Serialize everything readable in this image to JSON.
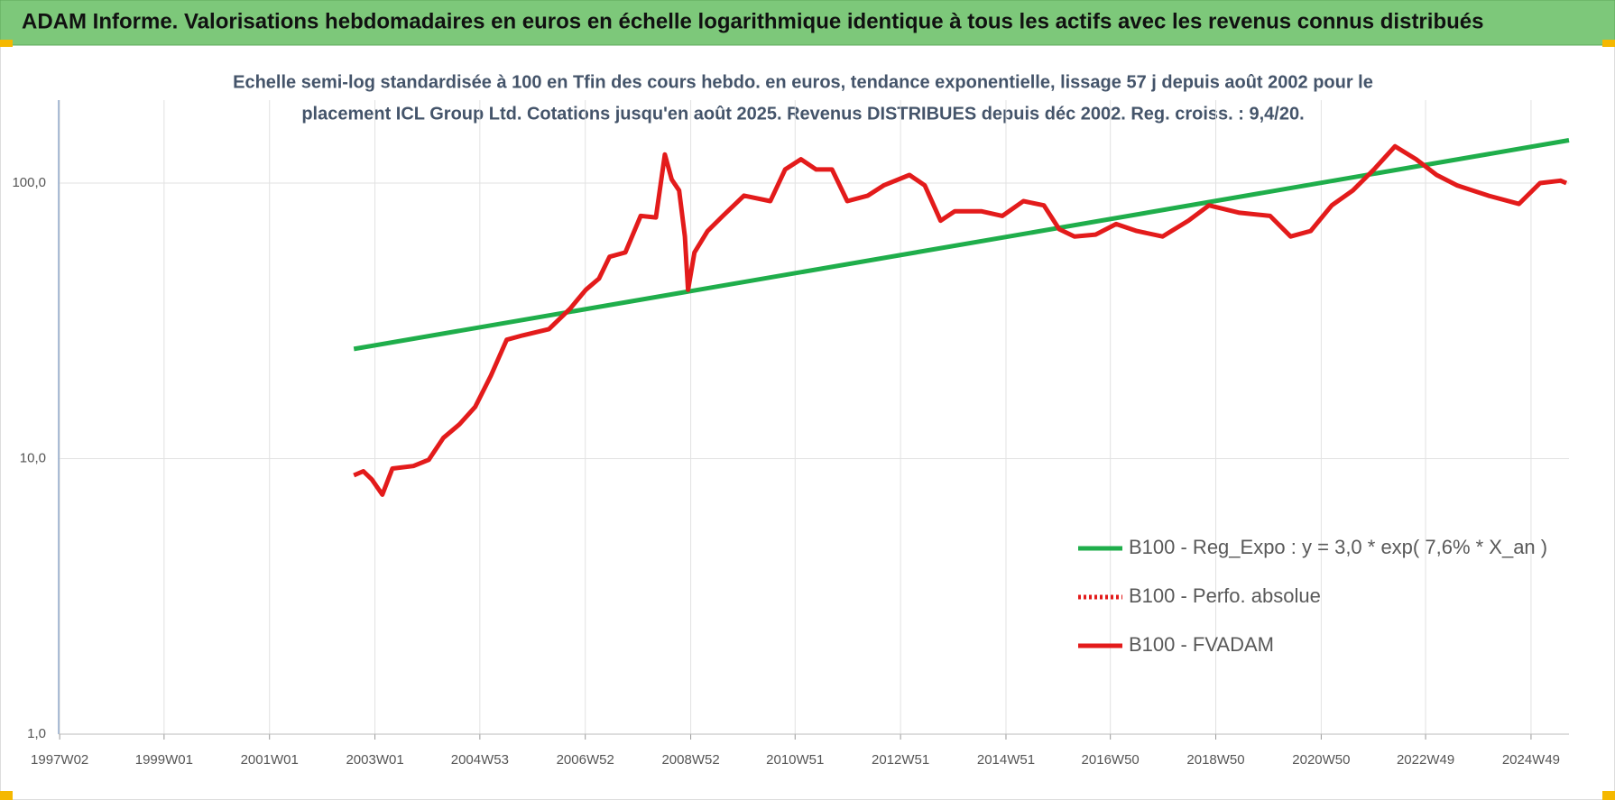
{
  "chart_data": {
    "type": "line",
    "title": "ADAM Informe. Valorisations hebdomadaires en euros en échelle logarithmique identique à tous les actifs avec les revenus connus distribués",
    "subtitle": [
      "Echelle semi-log standardisée à 100 en Tfin des cours hebdo. en euros, tendance exponentielle, lissage 57 j depuis août 2002 pour le",
      "placement ICL Group Ltd. Cotations jusqu'en août 2025. Revenus DISTRIBUES depuis déc 2002. Reg. croiss. : 9,4/20."
    ],
    "log_y": true,
    "grid": true,
    "legend": "lower right",
    "xlim": [
      1997.0,
      2025.65
    ],
    "xticks": [
      {
        "value": 1997.02,
        "label": "1997W02"
      },
      {
        "value": 1999.0,
        "label": "1999W01"
      },
      {
        "value": 2001.0,
        "label": "2001W01"
      },
      {
        "value": 2003.0,
        "label": "2003W01"
      },
      {
        "value": 2004.99,
        "label": "2004W53"
      },
      {
        "value": 2006.99,
        "label": "2006W52"
      },
      {
        "value": 2008.99,
        "label": "2008W52"
      },
      {
        "value": 2010.97,
        "label": "2010W51"
      },
      {
        "value": 2012.97,
        "label": "2012W51"
      },
      {
        "value": 2014.97,
        "label": "2014W51"
      },
      {
        "value": 2016.95,
        "label": "2016W50"
      },
      {
        "value": 2018.95,
        "label": "2018W50"
      },
      {
        "value": 2020.95,
        "label": "2020W50"
      },
      {
        "value": 2022.93,
        "label": "2022W49"
      },
      {
        "value": 2024.93,
        "label": "2024W49"
      }
    ],
    "ylim": [
      1,
      200
    ],
    "yticks": [
      {
        "value": 1,
        "label": "1,0"
      },
      {
        "value": 10,
        "label": "10,0"
      },
      {
        "value": 100,
        "label": "100,0"
      }
    ],
    "series": [
      {
        "name": "B100 - Reg_Expo : y = 3,0 * exp( 7,6% *  X_an )",
        "color": "#1fae4b",
        "dash": false,
        "x": [
          2002.6,
          2025.65
        ],
        "values": [
          25,
          143
        ]
      },
      {
        "name": "B100 - Perfo. absolue",
        "color": "#e31b1b",
        "dash": true,
        "x": [
          2002.6,
          2025.65
        ],
        "values": [
          null,
          null
        ]
      },
      {
        "name": "B100 - FVADAM",
        "color": "#e31b1b",
        "dash": false,
        "x": [
          2002.6,
          2002.78,
          2002.94,
          2003.14,
          2003.33,
          2003.73,
          2004.02,
          2004.3,
          2004.6,
          2004.9,
          2005.2,
          2005.5,
          2005.8,
          2006.3,
          2006.7,
          2007.0,
          2007.25,
          2007.45,
          2007.75,
          2008.04,
          2008.33,
          2008.5,
          2008.63,
          2008.77,
          2008.88,
          2008.94,
          2009.06,
          2009.31,
          2009.6,
          2010.0,
          2010.5,
          2010.78,
          2011.08,
          2011.37,
          2011.67,
          2011.96,
          2012.35,
          2012.65,
          2013.14,
          2013.43,
          2013.73,
          2014.0,
          2014.5,
          2014.9,
          2015.3,
          2015.69,
          2015.98,
          2016.27,
          2016.67,
          2017.06,
          2017.45,
          2017.94,
          2018.43,
          2018.82,
          2019.4,
          2019.98,
          2020.37,
          2020.75,
          2021.15,
          2021.55,
          2021.95,
          2022.35,
          2022.75,
          2023.14,
          2023.53,
          2024.12,
          2024.7,
          2025.1,
          2025.49,
          2025.6
        ],
        "values": [
          8.7,
          9.0,
          8.4,
          7.4,
          9.2,
          9.4,
          9.9,
          11.9,
          13.3,
          15.4,
          20,
          27,
          28,
          29.5,
          35,
          41,
          45,
          54,
          56,
          76,
          75,
          127,
          103,
          94,
          64,
          41,
          56,
          67,
          76,
          90,
          86,
          112,
          122,
          112,
          112,
          86,
          90,
          98,
          107,
          98,
          73,
          79,
          79,
          76,
          86,
          83,
          68,
          64,
          65,
          71,
          67,
          64,
          73,
          83,
          78,
          76,
          64,
          67,
          83,
          94,
          112,
          136,
          122,
          107,
          98,
          90,
          84,
          100,
          102,
          100
        ]
      }
    ]
  }
}
